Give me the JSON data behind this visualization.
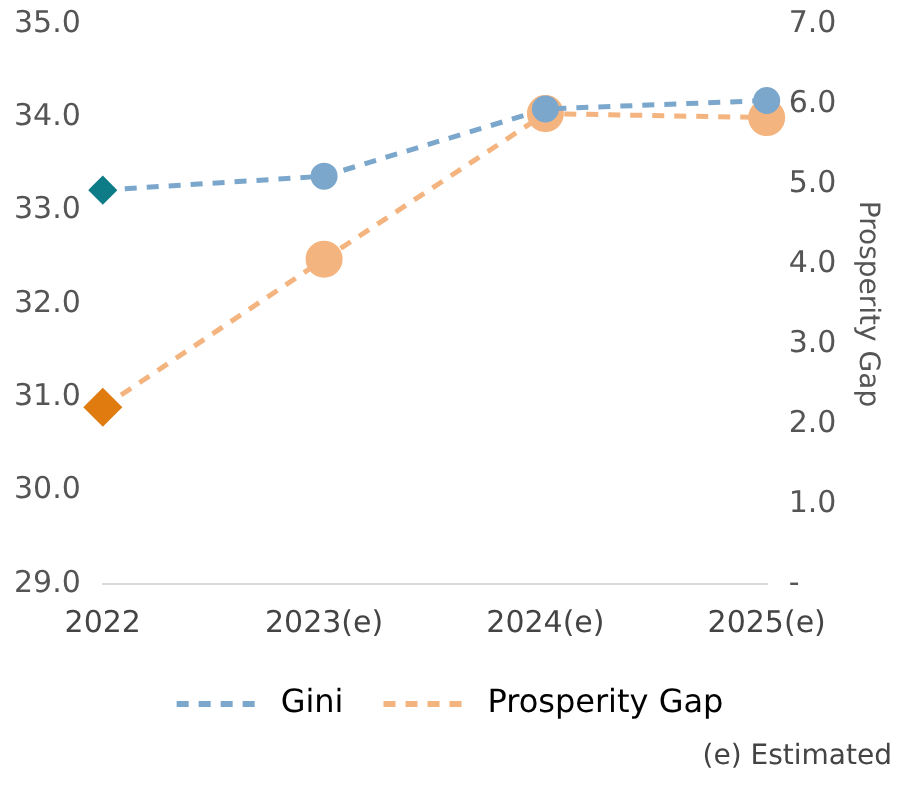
{
  "chart_data": {
    "type": "line",
    "categories": [
      "2022",
      "2023(e)",
      "2024(e)",
      "2025(e)"
    ],
    "series": [
      {
        "name": "Gini",
        "color": "#7ba7cc",
        "colors": [
          "#0e7c86",
          "#7ba7cc",
          "#7ba7cc",
          "#7ba7cc"
        ],
        "values": [
          33.22,
          33.37,
          34.09,
          34.18
        ]
      },
      {
        "name": "Prosperity Gap",
        "color": "#f4b47f",
        "colors": [
          "#e07b10",
          "#f4b47f",
          "#f4b47f",
          "#f4b47f"
        ],
        "values": [
          2.21,
          4.06,
          5.88,
          5.83
        ],
        "axis": "y2"
      }
    ],
    "ylim": [
      29,
      35
    ],
    "yticks": [
      {
        "value": 29,
        "label": "29.0"
      },
      {
        "value": 30,
        "label": "30.0"
      },
      {
        "value": 31,
        "label": "31.0"
      },
      {
        "value": 32,
        "label": "32.0"
      },
      {
        "value": 33,
        "label": "33.0"
      },
      {
        "value": 34,
        "label": "34.0"
      },
      {
        "value": 35,
        "label": "35.0"
      }
    ],
    "y2lim": [
      0,
      7
    ],
    "y2ticks": [
      {
        "value": 0,
        "label": "-"
      },
      {
        "value": 1,
        "label": "1.0"
      },
      {
        "value": 2,
        "label": "2.0"
      },
      {
        "value": 3,
        "label": "3.0"
      },
      {
        "value": 4,
        "label": "4.0"
      },
      {
        "value": 5,
        "label": "5.0"
      },
      {
        "value": 6,
        "label": "6.0"
      },
      {
        "value": 7,
        "label": "7.0"
      }
    ],
    "y2label": "Prosperity Gap",
    "marker": [
      "diamond",
      "circle",
      "circle",
      "circle"
    ],
    "line_style": "dashed",
    "grid": false,
    "legend": "bottom",
    "annotations": [
      "(e) Estimated"
    ]
  }
}
